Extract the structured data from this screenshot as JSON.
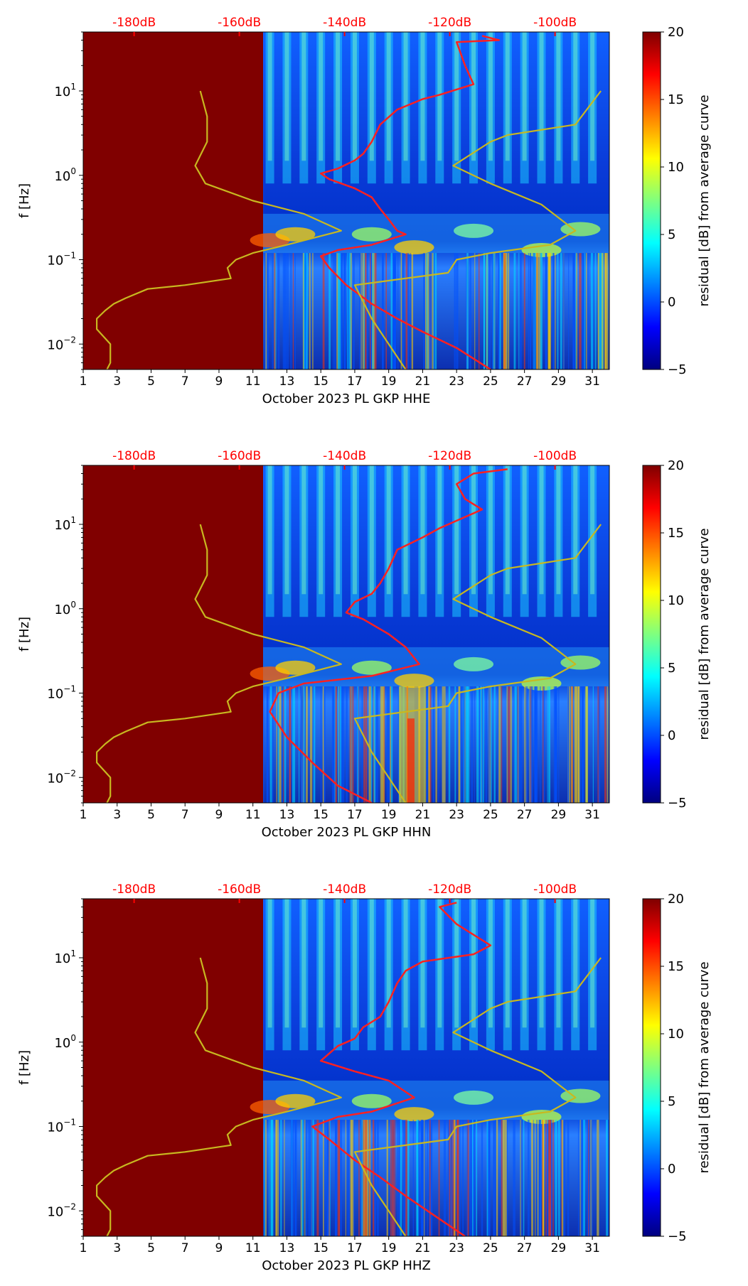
{
  "chart_data": [
    {
      "type": "heatmap",
      "station_label": "October 2023 PL GKP  HHE",
      "xlabel": "October 2023 PL GKP  HHE",
      "ylabel": "f [Hz]",
      "x_ticks": [
        "1",
        "3",
        "5",
        "7",
        "9",
        "11",
        "13",
        "15",
        "17",
        "19",
        "21",
        "23",
        "25",
        "27",
        "29",
        "31"
      ],
      "y_ticks": [
        "10^1",
        "10^0",
        "10^-1",
        "10^-2"
      ],
      "xlim": [
        1,
        32
      ],
      "ylim_hz": [
        0.005,
        50
      ],
      "y_scale": "log",
      "top_axis_labels": [
        "-180dB",
        "-160dB",
        "-140dB",
        "-120dB",
        "-100dB"
      ],
      "colorbar": {
        "label": "residual [dB] from average curve",
        "ticks": [
          "20",
          "15",
          "10",
          "5",
          "0",
          "−5"
        ],
        "range": [
          -5,
          20
        ],
        "colormap": "jet"
      },
      "series": [
        {
          "color": "#ff2020",
          "points": [
            [
              24.5,
              45
            ],
            [
              25.5,
              40
            ],
            [
              23,
              38
            ],
            [
              23.5,
              20
            ],
            [
              24,
              12
            ],
            [
              22,
              9
            ],
            [
              21,
              8
            ],
            [
              19.5,
              6
            ],
            [
              18.5,
              4
            ],
            [
              18,
              2.5
            ],
            [
              17.5,
              1.8
            ],
            [
              17,
              1.5
            ],
            [
              16,
              1.2
            ],
            [
              15,
              1.05
            ],
            [
              15.5,
              0.9
            ],
            [
              17,
              0.7
            ],
            [
              18,
              0.55
            ],
            [
              18.5,
              0.4
            ],
            [
              19,
              0.3
            ],
            [
              19.5,
              0.22
            ],
            [
              20,
              0.2
            ],
            [
              18,
              0.15
            ],
            [
              16,
              0.13
            ],
            [
              15,
              0.11
            ],
            [
              15.5,
              0.08
            ],
            [
              16.5,
              0.05
            ],
            [
              18,
              0.03
            ],
            [
              19.5,
              0.02
            ],
            [
              21,
              0.014
            ],
            [
              23,
              0.009
            ],
            [
              25,
              0.005
            ]
          ]
        },
        {
          "color": "#c8b820",
          "points": [
            [
              7.9,
              10
            ],
            [
              8.3,
              5
            ],
            [
              8.3,
              2.5
            ],
            [
              7.6,
              1.3
            ],
            [
              8.2,
              0.8
            ],
            [
              11,
              0.5
            ],
            [
              14,
              0.35
            ],
            [
              16.2,
              0.22
            ],
            [
              13,
              0.15
            ],
            [
              11,
              0.12
            ],
            [
              10,
              0.1
            ],
            [
              9.5,
              0.08
            ],
            [
              9.7,
              0.06
            ],
            [
              7,
              0.05
            ],
            [
              4.8,
              0.045
            ],
            [
              3.5,
              0.035
            ],
            [
              2.8,
              0.03
            ],
            [
              2.3,
              0.025
            ],
            [
              1.8,
              0.02
            ],
            [
              1.8,
              0.015
            ],
            [
              2.6,
              0.01
            ],
            [
              2.6,
              0.006
            ],
            [
              2.4,
              0.005
            ]
          ]
        },
        {
          "color": "#c8b820",
          "points": [
            [
              31.5,
              10
            ],
            [
              30,
              4
            ],
            [
              26,
              3
            ],
            [
              25,
              2.5
            ],
            [
              22.8,
              1.3
            ],
            [
              25,
              0.8
            ],
            [
              28,
              0.45
            ],
            [
              30,
              0.22
            ],
            [
              28.5,
              0.15
            ],
            [
              25,
              0.12
            ],
            [
              23,
              0.1
            ],
            [
              22.5,
              0.07
            ],
            [
              17,
              0.05
            ],
            [
              18,
              0.02
            ],
            [
              20,
              0.005
            ]
          ]
        }
      ]
    },
    {
      "type": "heatmap",
      "station_label": "October 2023 PL GKP  HHN",
      "xlabel": "October 2023 PL GKP  HHN",
      "ylabel": "f [Hz]",
      "x_ticks": [
        "1",
        "3",
        "5",
        "7",
        "9",
        "11",
        "13",
        "15",
        "17",
        "19",
        "21",
        "23",
        "25",
        "27",
        "29",
        "31"
      ],
      "y_ticks": [
        "10^1",
        "10^0",
        "10^-1",
        "10^-2"
      ],
      "xlim": [
        1,
        32
      ],
      "ylim_hz": [
        0.005,
        50
      ],
      "y_scale": "log",
      "top_axis_labels": [
        "-180dB",
        "-160dB",
        "-140dB",
        "-120dB",
        "-100dB"
      ],
      "colorbar": {
        "label": "residual [dB] from average curve",
        "ticks": [
          "20",
          "15",
          "10",
          "5",
          "0",
          "−5"
        ],
        "range": [
          -5,
          20
        ],
        "colormap": "jet"
      },
      "series": [
        {
          "color": "#ff2020",
          "points": [
            [
              26,
              45
            ],
            [
              24,
              40
            ],
            [
              23,
              30
            ],
            [
              23.5,
              20
            ],
            [
              24.5,
              15
            ],
            [
              22,
              9
            ],
            [
              21,
              7
            ],
            [
              19.5,
              5
            ],
            [
              19,
              3
            ],
            [
              18.5,
              2
            ],
            [
              18,
              1.5
            ],
            [
              17,
              1.2
            ],
            [
              16.5,
              0.9
            ],
            [
              17.5,
              0.75
            ],
            [
              19,
              0.5
            ],
            [
              20,
              0.35
            ],
            [
              20.8,
              0.22
            ],
            [
              18,
              0.16
            ],
            [
              14,
              0.13
            ],
            [
              12.5,
              0.1
            ],
            [
              12,
              0.06
            ],
            [
              13,
              0.03
            ],
            [
              14.5,
              0.015
            ],
            [
              16,
              0.008
            ],
            [
              18,
              0.005
            ]
          ]
        },
        {
          "color": "#c8b820",
          "points": [
            [
              7.9,
              10
            ],
            [
              8.3,
              5
            ],
            [
              8.3,
              2.5
            ],
            [
              7.6,
              1.3
            ],
            [
              8.2,
              0.8
            ],
            [
              11,
              0.5
            ],
            [
              14,
              0.35
            ],
            [
              16.2,
              0.22
            ],
            [
              13,
              0.15
            ],
            [
              11,
              0.12
            ],
            [
              10,
              0.1
            ],
            [
              9.5,
              0.08
            ],
            [
              9.7,
              0.06
            ],
            [
              7,
              0.05
            ],
            [
              4.8,
              0.045
            ],
            [
              3.5,
              0.035
            ],
            [
              2.8,
              0.03
            ],
            [
              2.3,
              0.025
            ],
            [
              1.8,
              0.02
            ],
            [
              1.8,
              0.015
            ],
            [
              2.6,
              0.01
            ],
            [
              2.6,
              0.006
            ],
            [
              2.4,
              0.005
            ]
          ]
        },
        {
          "color": "#c8b820",
          "points": [
            [
              31.5,
              10
            ],
            [
              30,
              4
            ],
            [
              26,
              3
            ],
            [
              25,
              2.5
            ],
            [
              22.8,
              1.3
            ],
            [
              25,
              0.8
            ],
            [
              28,
              0.45
            ],
            [
              30,
              0.22
            ],
            [
              28.5,
              0.15
            ],
            [
              25,
              0.12
            ],
            [
              23,
              0.1
            ],
            [
              22.5,
              0.07
            ],
            [
              17,
              0.05
            ],
            [
              18,
              0.02
            ],
            [
              20,
              0.005
            ]
          ]
        }
      ]
    },
    {
      "type": "heatmap",
      "station_label": "October 2023 PL GKP  HHZ",
      "xlabel": "October 2023 PL GKP  HHZ",
      "ylabel": "f [Hz]",
      "x_ticks": [
        "1",
        "3",
        "5",
        "7",
        "9",
        "11",
        "13",
        "15",
        "17",
        "19",
        "21",
        "23",
        "25",
        "27",
        "29",
        "31"
      ],
      "y_ticks": [
        "10^1",
        "10^0",
        "10^-1",
        "10^-2"
      ],
      "xlim": [
        1,
        32
      ],
      "ylim_hz": [
        0.005,
        50
      ],
      "y_scale": "log",
      "top_axis_labels": [
        "-180dB",
        "-160dB",
        "-140dB",
        "-120dB",
        "-100dB"
      ],
      "colorbar": {
        "label": "residual [dB] from average curve",
        "ticks": [
          "20",
          "15",
          "10",
          "5",
          "0",
          "−5"
        ],
        "range": [
          -5,
          20
        ],
        "colormap": "jet"
      },
      "series": [
        {
          "color": "#ff2020",
          "points": [
            [
              23,
              45
            ],
            [
              22,
              40
            ],
            [
              23,
              25
            ],
            [
              25,
              14
            ],
            [
              24,
              11
            ],
            [
              21,
              9
            ],
            [
              20,
              7
            ],
            [
              19.5,
              5
            ],
            [
              19,
              3
            ],
            [
              18.5,
              2
            ],
            [
              17.5,
              1.5
            ],
            [
              17,
              1.1
            ],
            [
              16,
              0.9
            ],
            [
              15,
              0.6
            ],
            [
              17,
              0.45
            ],
            [
              19,
              0.35
            ],
            [
              20.5,
              0.22
            ],
            [
              18,
              0.15
            ],
            [
              16,
              0.13
            ],
            [
              14.5,
              0.1
            ],
            [
              15.5,
              0.07
            ],
            [
              17,
              0.04
            ],
            [
              18.5,
              0.025
            ],
            [
              20,
              0.015
            ],
            [
              22,
              0.008
            ],
            [
              23.5,
              0.005
            ]
          ]
        },
        {
          "color": "#c8b820",
          "points": [
            [
              7.9,
              10
            ],
            [
              8.3,
              5
            ],
            [
              8.3,
              2.5
            ],
            [
              7.6,
              1.3
            ],
            [
              8.2,
              0.8
            ],
            [
              11,
              0.5
            ],
            [
              14,
              0.35
            ],
            [
              16.2,
              0.22
            ],
            [
              13,
              0.15
            ],
            [
              11,
              0.12
            ],
            [
              10,
              0.1
            ],
            [
              9.5,
              0.08
            ],
            [
              9.7,
              0.06
            ],
            [
              7,
              0.05
            ],
            [
              4.8,
              0.045
            ],
            [
              3.5,
              0.035
            ],
            [
              2.8,
              0.03
            ],
            [
              2.3,
              0.025
            ],
            [
              1.8,
              0.02
            ],
            [
              1.8,
              0.015
            ],
            [
              2.6,
              0.01
            ],
            [
              2.6,
              0.006
            ],
            [
              2.4,
              0.005
            ]
          ]
        },
        {
          "color": "#c8b820",
          "points": [
            [
              31.5,
              10
            ],
            [
              30,
              4
            ],
            [
              26,
              3
            ],
            [
              25,
              2.5
            ],
            [
              22.8,
              1.3
            ],
            [
              25,
              0.8
            ],
            [
              28,
              0.45
            ],
            [
              30,
              0.22
            ],
            [
              28.5,
              0.15
            ],
            [
              25,
              0.12
            ],
            [
              23,
              0.1
            ],
            [
              22.5,
              0.07
            ],
            [
              17,
              0.05
            ],
            [
              18,
              0.02
            ],
            [
              20,
              0.005
            ]
          ]
        }
      ]
    }
  ]
}
